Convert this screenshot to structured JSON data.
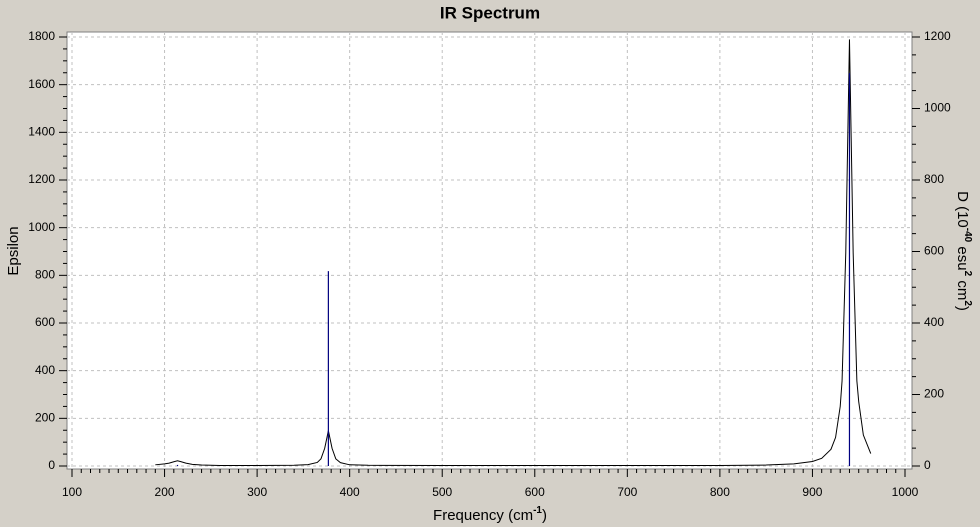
{
  "chart_data": {
    "type": "spectrum",
    "title": "IR Spectrum",
    "x_label": [
      "Frequency (cm",
      "-1",
      ")"
    ],
    "y_label": "Epsilon",
    "y2_label": [
      "D (10",
      "-40",
      " esu",
      "2",
      " cm",
      "2",
      ")"
    ],
    "xlim": [
      100,
      1000
    ],
    "xticks": [
      100,
      200,
      300,
      400,
      500,
      600,
      700,
      800,
      900,
      1000
    ],
    "ylim": [
      0,
      1800
    ],
    "yticks": [
      0,
      200,
      400,
      600,
      800,
      1000,
      1200,
      1400,
      1600,
      1800
    ],
    "y2lim": [
      0,
      1200
    ],
    "y2ticks": [
      0,
      200,
      400,
      600,
      800,
      1000,
      1200
    ],
    "grid": true,
    "series": [
      {
        "color": "#000000",
        "x": [
          190,
          200,
          205,
          210,
          214,
          218,
          223,
          230,
          240,
          260,
          300,
          340,
          355,
          365,
          369,
          373,
          377,
          381,
          385,
          390,
          400,
          420,
          500,
          600,
          700,
          800,
          850,
          880,
          900,
          910,
          920,
          925,
          930,
          932,
          936,
          940,
          944,
          948,
          950,
          955,
          963
        ],
        "values": [
          5,
          9,
          12,
          18,
          22,
          18,
          12,
          7,
          4,
          2,
          2,
          3,
          6,
          15,
          30,
          74,
          148,
          74,
          30,
          14,
          5,
          3,
          2,
          2,
          2,
          2,
          4,
          9,
          19,
          32,
          70,
          120,
          250,
          357,
          894,
          1790,
          894,
          357,
          270,
          130,
          52
        ]
      },
      {
        "color": "#000080",
        "axis": "y2",
        "sticks": true,
        "x": [
          214,
          377,
          940
        ],
        "values": [
          3,
          545,
          1099
        ]
      }
    ]
  }
}
